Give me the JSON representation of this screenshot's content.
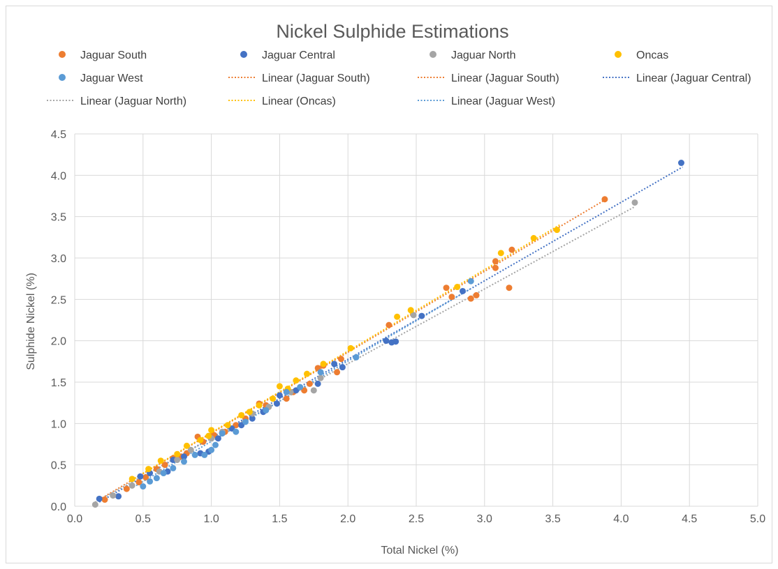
{
  "chart_data": {
    "type": "scatter",
    "title": "Nickel Sulphide Estimations",
    "xlabel": "Total Nickel (%)",
    "ylabel": "Sulphide Nickel (%)",
    "xlim": [
      0,
      5
    ],
    "ylim": [
      0,
      4.5
    ],
    "x_ticks": [
      "0.0",
      "0.5",
      "1.0",
      "1.5",
      "2.0",
      "2.5",
      "3.0",
      "3.5",
      "4.0",
      "4.5",
      "5.0"
    ],
    "y_ticks": [
      "0.0",
      "0.5",
      "1.0",
      "1.5",
      "2.0",
      "2.5",
      "3.0",
      "3.5",
      "4.0",
      "4.5"
    ],
    "grid": true,
    "legend_position": "top",
    "legend": [
      {
        "label": "Jaguar South",
        "kind": "marker",
        "color": "#ED7D31"
      },
      {
        "label": "Jaguar Central",
        "kind": "marker",
        "color": "#4472C4"
      },
      {
        "label": "Jaguar North",
        "kind": "marker",
        "color": "#A5A5A5"
      },
      {
        "label": "Oncas",
        "kind": "marker",
        "color": "#FFC000"
      },
      {
        "label": "Jaguar West",
        "kind": "marker",
        "color": "#5B9BD5"
      },
      {
        "label": "Linear (Jaguar South)",
        "kind": "line",
        "color": "#ED7D31"
      },
      {
        "label": "Linear (Jaguar South)",
        "kind": "line",
        "color": "#ED7D31"
      },
      {
        "label": "Linear (Jaguar Central)",
        "kind": "line",
        "color": "#4472C4"
      },
      {
        "label": "Linear (Jaguar North)",
        "kind": "line",
        "color": "#A5A5A5"
      },
      {
        "label": "Linear (Oncas)",
        "kind": "line",
        "color": "#FFC000"
      },
      {
        "label": "Linear (Jaguar West)",
        "kind": "line",
        "color": "#5B9BD5"
      }
    ],
    "series": [
      {
        "name": "Jaguar South",
        "color": "#ED7D31",
        "points": [
          [
            0.22,
            0.08
          ],
          [
            0.38,
            0.21
          ],
          [
            0.47,
            0.29
          ],
          [
            0.52,
            0.35
          ],
          [
            0.6,
            0.45
          ],
          [
            0.66,
            0.5
          ],
          [
            0.72,
            0.58
          ],
          [
            0.78,
            0.6
          ],
          [
            0.82,
            0.64
          ],
          [
            0.9,
            0.84
          ],
          [
            0.94,
            0.78
          ],
          [
            1.02,
            0.86
          ],
          [
            1.1,
            0.9
          ],
          [
            1.18,
            0.98
          ],
          [
            1.25,
            1.06
          ],
          [
            1.35,
            1.24
          ],
          [
            1.4,
            1.22
          ],
          [
            1.55,
            1.3
          ],
          [
            1.6,
            1.38
          ],
          [
            1.68,
            1.4
          ],
          [
            1.72,
            1.48
          ],
          [
            1.78,
            1.67
          ],
          [
            1.82,
            1.7
          ],
          [
            1.92,
            1.62
          ],
          [
            1.95,
            1.78
          ],
          [
            2.3,
            2.19
          ],
          [
            2.72,
            2.64
          ],
          [
            2.76,
            2.53
          ],
          [
            2.9,
            2.51
          ],
          [
            2.94,
            2.55
          ],
          [
            3.08,
            2.88
          ],
          [
            3.08,
            2.96
          ],
          [
            3.18,
            2.64
          ],
          [
            3.2,
            3.1
          ],
          [
            3.88,
            3.71
          ]
        ]
      },
      {
        "name": "Jaguar Central",
        "color": "#4472C4",
        "points": [
          [
            0.18,
            0.09
          ],
          [
            0.32,
            0.12
          ],
          [
            0.48,
            0.36
          ],
          [
            0.55,
            0.4
          ],
          [
            0.68,
            0.42
          ],
          [
            0.72,
            0.56
          ],
          [
            0.8,
            0.6
          ],
          [
            0.92,
            0.64
          ],
          [
            0.98,
            0.66
          ],
          [
            1.05,
            0.82
          ],
          [
            1.15,
            0.94
          ],
          [
            1.22,
            0.98
          ],
          [
            1.3,
            1.06
          ],
          [
            1.38,
            1.14
          ],
          [
            1.48,
            1.24
          ],
          [
            1.5,
            1.34
          ],
          [
            1.62,
            1.4
          ],
          [
            1.78,
            1.48
          ],
          [
            1.9,
            1.72
          ],
          [
            1.96,
            1.68
          ],
          [
            2.28,
            2.0
          ],
          [
            2.32,
            1.98
          ],
          [
            2.35,
            1.99
          ],
          [
            2.54,
            2.3
          ],
          [
            2.84,
            2.6
          ],
          [
            4.44,
            4.15
          ]
        ]
      },
      {
        "name": "Jaguar North",
        "color": "#A5A5A5",
        "points": [
          [
            0.15,
            0.02
          ],
          [
            0.28,
            0.13
          ],
          [
            0.42,
            0.25
          ],
          [
            0.62,
            0.42
          ],
          [
            0.75,
            0.56
          ],
          [
            0.85,
            0.68
          ],
          [
            1.0,
            0.82
          ],
          [
            1.08,
            0.9
          ],
          [
            1.3,
            1.12
          ],
          [
            1.42,
            1.2
          ],
          [
            1.58,
            1.38
          ],
          [
            1.75,
            1.4
          ],
          [
            1.8,
            1.55
          ],
          [
            2.48,
            2.31
          ],
          [
            4.1,
            3.67
          ]
        ]
      },
      {
        "name": "Oncas",
        "color": "#FFC000",
        "points": [
          [
            0.42,
            0.33
          ],
          [
            0.54,
            0.45
          ],
          [
            0.63,
            0.55
          ],
          [
            0.75,
            0.63
          ],
          [
            0.82,
            0.73
          ],
          [
            0.92,
            0.8
          ],
          [
            0.98,
            0.85
          ],
          [
            1.0,
            0.92
          ],
          [
            1.12,
            0.98
          ],
          [
            1.22,
            1.1
          ],
          [
            1.28,
            1.14
          ],
          [
            1.35,
            1.22
          ],
          [
            1.45,
            1.3
          ],
          [
            1.5,
            1.45
          ],
          [
            1.56,
            1.42
          ],
          [
            1.62,
            1.52
          ],
          [
            1.7,
            1.6
          ],
          [
            1.82,
            1.72
          ],
          [
            2.02,
            1.91
          ],
          [
            2.36,
            2.29
          ],
          [
            2.46,
            2.37
          ],
          [
            2.8,
            2.65
          ],
          [
            3.12,
            3.06
          ],
          [
            3.36,
            3.24
          ],
          [
            3.53,
            3.34
          ]
        ]
      },
      {
        "name": "Jaguar West",
        "color": "#5B9BD5",
        "points": [
          [
            0.5,
            0.24
          ],
          [
            0.55,
            0.3
          ],
          [
            0.6,
            0.34
          ],
          [
            0.65,
            0.4
          ],
          [
            0.72,
            0.46
          ],
          [
            0.8,
            0.54
          ],
          [
            0.88,
            0.62
          ],
          [
            0.95,
            0.62
          ],
          [
            1.0,
            0.68
          ],
          [
            1.03,
            0.74
          ],
          [
            1.08,
            0.88
          ],
          [
            1.18,
            0.9
          ],
          [
            1.25,
            1.02
          ],
          [
            1.4,
            1.16
          ],
          [
            1.55,
            1.38
          ],
          [
            1.65,
            1.44
          ],
          [
            1.8,
            1.62
          ],
          [
            2.06,
            1.8
          ],
          [
            2.9,
            2.72
          ]
        ]
      }
    ],
    "trendlines": [
      {
        "series": "Jaguar South",
        "color": "#ED7D31",
        "x": [
          0.2,
          3.9
        ],
        "y": [
          0.1,
          3.72
        ]
      },
      {
        "series": "Jaguar Central",
        "color": "#4472C4",
        "x": [
          0.18,
          4.45
        ],
        "y": [
          0.05,
          4.1
        ]
      },
      {
        "series": "Jaguar North",
        "color": "#A5A5A5",
        "x": [
          0.15,
          4.1
        ],
        "y": [
          0.05,
          3.62
        ]
      },
      {
        "series": "Oncas",
        "color": "#FFC000",
        "x": [
          0.4,
          3.55
        ],
        "y": [
          0.3,
          3.4
        ]
      },
      {
        "series": "Jaguar West",
        "color": "#5B9BD5",
        "x": [
          0.45,
          2.9
        ],
        "y": [
          0.25,
          2.63
        ]
      }
    ]
  }
}
